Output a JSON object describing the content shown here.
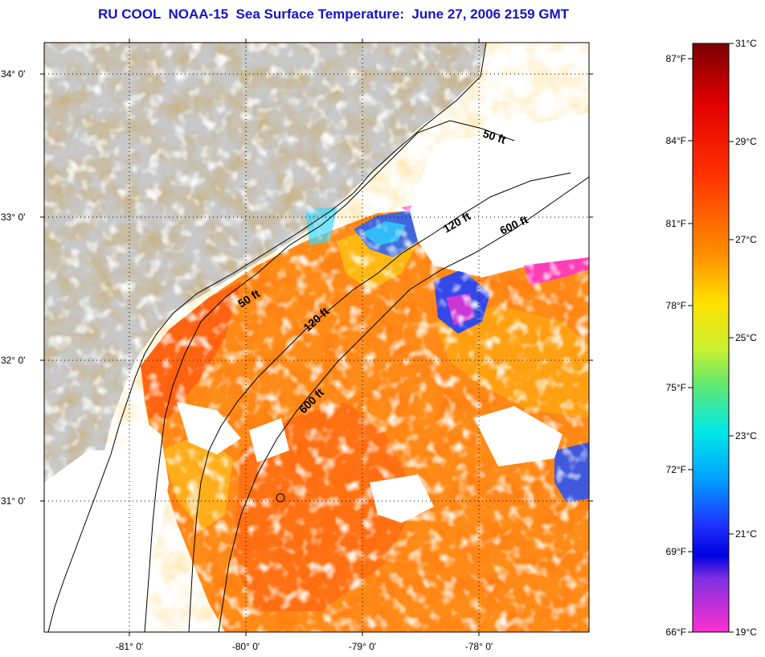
{
  "title": "RU COOL  NOAA-15  Sea Surface Temperature:  June 27, 2006 2159 GMT",
  "map": {
    "lat_labels": [
      "34° 0'",
      "33° 0'",
      "32° 0'",
      "31° 0'"
    ],
    "lon_labels": [
      "-81° 0'",
      "-80° 0'",
      "-79° 0'",
      "-78° 0'"
    ],
    "depth_labels": [
      "50 ft",
      "120 ft",
      "600 ft",
      "50 ft",
      "120 ft",
      "600 ft"
    ]
  },
  "colorbar": {
    "fahrenheit": [
      "87°F",
      "84°F",
      "81°F",
      "78°F",
      "75°F",
      "72°F",
      "69°F",
      "66°F"
    ],
    "celsius": [
      "31°C",
      "29°C",
      "27°C",
      "25°C",
      "23°C",
      "21°C",
      "19°C"
    ]
  },
  "colors": {
    "title": "#1414c8",
    "land": "#c8c8c8",
    "warm": "#ff6a10",
    "cool": "#ffd000"
  }
}
